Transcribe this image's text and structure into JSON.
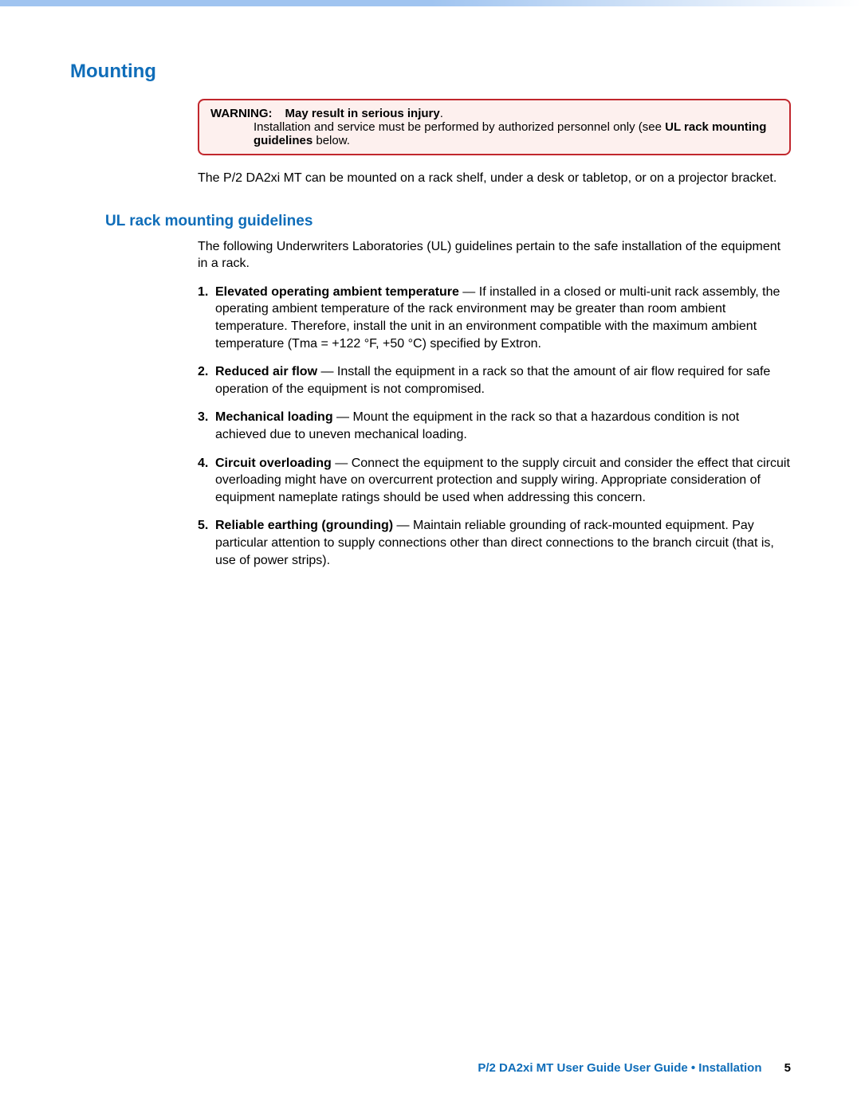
{
  "colors": {
    "heading": "#0f6db9",
    "warning_border": "#c1272d",
    "warning_bg": "#fdf0ee",
    "top_bar_start": "#a0c4f0",
    "text": "#000000"
  },
  "heading1": "Mounting",
  "warning": {
    "label": "WARNING:",
    "title": "May result in serious injury",
    "body_prefix": "Installation and service must be performed by authorized personnel only (see",
    "bold_ref": "UL rack mounting guidelines",
    "body_suffix": " below."
  },
  "intro": "The P/2 DA2xi MT can be mounted on a rack shelf, under a desk or tabletop, or on a projector bracket.",
  "heading2": "UL rack mounting guidelines",
  "subintro": "The following Underwriters Laboratories (UL) guidelines pertain to the safe installation of the equipment in a rack.",
  "items": [
    {
      "num": "1.",
      "title": "Elevated operating ambient temperature",
      "text": " — If installed in a closed or multi-unit rack assembly, the operating ambient temperature of the rack environment may be greater than room ambient temperature. Therefore, install the unit in an environment compatible with the maximum ambient temperature (Tma = +122 °F, +50 °C) specified by Extron."
    },
    {
      "num": "2.",
      "title": "Reduced air flow",
      "text": " — Install the equipment in a rack so that the amount of air flow required for safe operation of the equipment is not compromised."
    },
    {
      "num": "3.",
      "title": "Mechanical loading",
      "text": " — Mount the equipment in the rack so that a hazardous condition is not achieved due to uneven mechanical loading."
    },
    {
      "num": "4.",
      "title": "Circuit overloading",
      "text": " — Connect the equipment to the supply circuit and consider the effect that circuit overloading might have on overcurrent protection and supply wiring. Appropriate consideration of equipment nameplate ratings should be used when addressing this concern."
    },
    {
      "num": "5.",
      "title": "Reliable earthing (grounding)",
      "text": " — Maintain reliable grounding of rack-mounted equipment. Pay particular attention to supply connections other than direct connections to the branch circuit (that is, use of power strips)."
    }
  ],
  "footer": {
    "text": "P/2 DA2xi MT User Guide User Guide • Installation",
    "page": "5"
  }
}
